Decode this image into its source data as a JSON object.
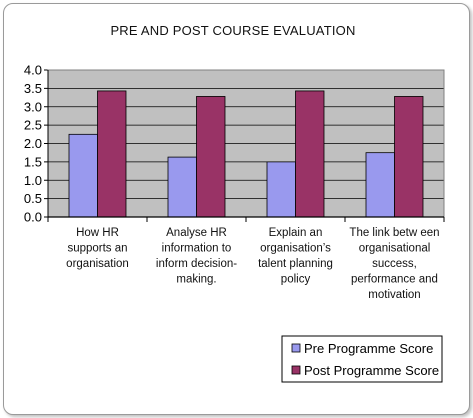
{
  "chart_data": {
    "type": "bar",
    "title": "PRE AND POST COURSE EVALUATION",
    "categories": [
      [
        "How  HR",
        "supports an",
        "organisation"
      ],
      [
        "Analyse HR",
        "information to",
        "inform decision-",
        "making."
      ],
      [
        "Explain an",
        "organisation’s",
        "talent planning",
        "policy"
      ],
      [
        "The link betw een",
        "organisational",
        "success,",
        "performance and",
        "motivation"
      ]
    ],
    "series": [
      {
        "name": "Pre Programme Score",
        "values": [
          2.25,
          1.63,
          1.5,
          1.75
        ],
        "color": "#9999ee"
      },
      {
        "name": "Post Programme Score",
        "values": [
          3.43,
          3.28,
          3.43,
          3.28
        ],
        "color": "#993366"
      }
    ],
    "ylim": [
      0,
      4.0
    ],
    "yticks": [
      "0.0",
      "0.5",
      "1.0",
      "1.5",
      "2.0",
      "2.5",
      "3.0",
      "3.5",
      "4.0"
    ],
    "grid": true,
    "plot_background": "#c0c0c0",
    "legend_position": "bottom-right"
  }
}
